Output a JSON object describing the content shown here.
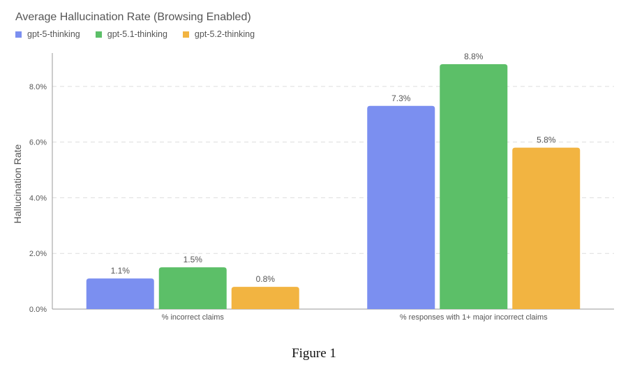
{
  "chart_data": {
    "type": "bar",
    "title": "Average Hallucination Rate (Browsing Enabled)",
    "ylabel": "Hallucination Rate",
    "xlabel": "",
    "ylim": [
      0,
      9.2
    ],
    "yticks": [
      0,
      2,
      4,
      6,
      8
    ],
    "ytick_labels": [
      "0.0%",
      "2.0%",
      "4.0%",
      "6.0%",
      "8.0%"
    ],
    "categories": [
      "% incorrect claims",
      "% responses with 1+ major incorrect claims"
    ],
    "series": [
      {
        "name": "gpt-5-thinking",
        "color": "#7b8ff0",
        "values": [
          1.1,
          7.3
        ],
        "labels": [
          "1.1%",
          "7.3%"
        ]
      },
      {
        "name": "gpt-5.1-thinking",
        "color": "#5cbf68",
        "values": [
          1.5,
          8.8
        ],
        "labels": [
          "1.5%",
          "8.8%"
        ]
      },
      {
        "name": "gpt-5.2-thinking",
        "color": "#f2b441",
        "values": [
          0.8,
          5.8
        ],
        "labels": [
          "0.8%",
          "5.8%"
        ]
      }
    ],
    "legend_position": "top-left",
    "grid": true
  },
  "caption": "Figure 1"
}
